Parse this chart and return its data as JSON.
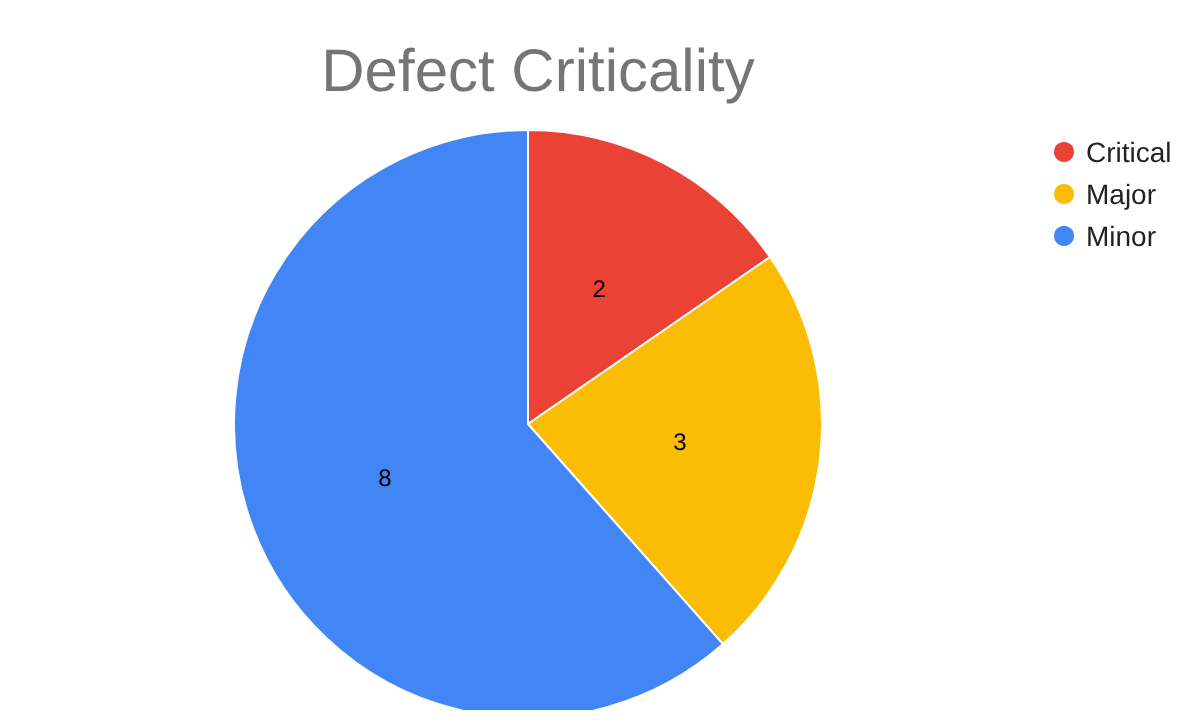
{
  "chart_data": {
    "type": "pie",
    "title": "Defect Criticality",
    "categories": [
      "Critical",
      "Major",
      "Minor"
    ],
    "values": [
      2,
      3,
      8
    ],
    "colors": [
      "#ea4335",
      "#fbbc04",
      "#4285f4"
    ],
    "data_labels": true,
    "legend": "right"
  }
}
